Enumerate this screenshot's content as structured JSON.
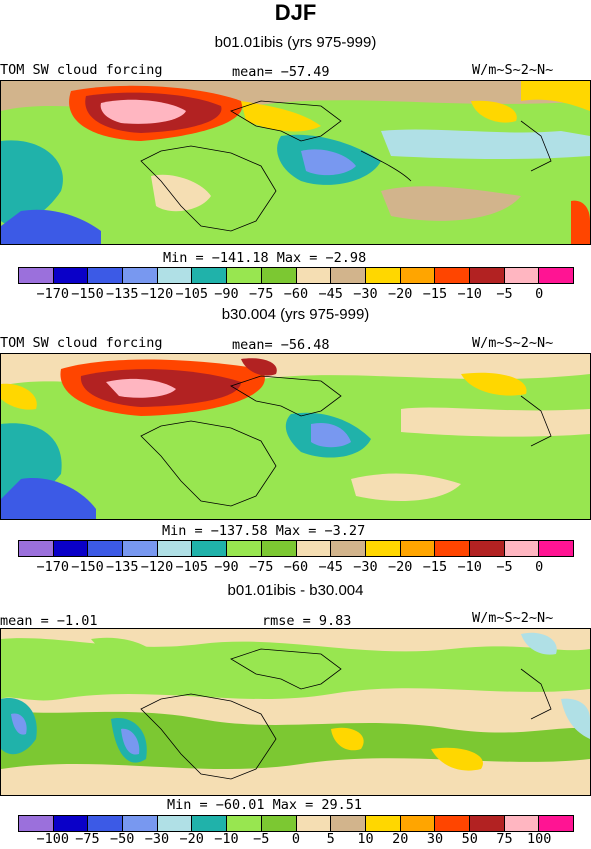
{
  "page_title": "DJF",
  "panels": [
    {
      "title": "b01.01ibis (yrs 975-999)",
      "left_label": "TOM SW cloud forcing",
      "center_label": "mean=  −57.49",
      "units": "W/m~S~2~N~",
      "minmax": "Min = −141.18 Max =   −2.98"
    },
    {
      "title": "b30.004 (yrs 975-999)",
      "left_label": "TOM SW cloud forcing",
      "center_label": "mean=  −56.48",
      "units": "W/m~S~2~N~",
      "minmax": "Min = −137.58 Max =   −3.27"
    },
    {
      "title": "b01.01ibis - b30.004",
      "left_label": "mean =   −1.01",
      "center_label": "rmse =    9.83",
      "units": "W/m~S~2~N~",
      "minmax": "Min = −60.01 Max =   29.51"
    }
  ],
  "colorbar_colors": [
    "#9b70dc",
    "#0a00c8",
    "#3c5ae6",
    "#7898f0",
    "#b0e0e6",
    "#20b2aa",
    "#98e650",
    "#7cc832",
    "#f5deb3",
    "#d2b48c",
    "#ffd700",
    "#ffa500",
    "#ff4500",
    "#b22222",
    "#ffb6c1",
    "#ff1493"
  ],
  "colorbar_ticks_abs": [
    "−170",
    "−150",
    "−135",
    "−120",
    "−105",
    "−90",
    "−75",
    "−60",
    "−45",
    "−30",
    "−20",
    "−15",
    "−10",
    "−5",
    "0"
  ],
  "colorbar_ticks_diff": [
    "−100",
    "−75",
    "−50",
    "−30",
    "−20",
    "−10",
    "−5",
    "0",
    "5",
    "10",
    "20",
    "30",
    "50",
    "75",
    "100"
  ],
  "chart_data": [
    {
      "type": "heatmap",
      "title": "b01.01ibis (yrs 975-999)",
      "variable": "TOM SW cloud forcing",
      "mean": -57.49,
      "min": -141.18,
      "max": -2.98,
      "units": "W/m~S~2~N~",
      "levels": [
        -170,
        -150,
        -135,
        -120,
        -105,
        -90,
        -75,
        -60,
        -45,
        -30,
        -20,
        -15,
        -10,
        -5,
        0
      ]
    },
    {
      "type": "heatmap",
      "title": "b30.004 (yrs 975-999)",
      "variable": "TOM SW cloud forcing",
      "mean": -56.48,
      "min": -137.58,
      "max": -3.27,
      "units": "W/m~S~2~N~",
      "levels": [
        -170,
        -150,
        -135,
        -120,
        -105,
        -90,
        -75,
        -60,
        -45,
        -30,
        -20,
        -15,
        -10,
        -5,
        0
      ]
    },
    {
      "type": "heatmap",
      "title": "b01.01ibis - b30.004",
      "mean": -1.01,
      "rmse": 9.83,
      "min": -60.01,
      "max": 29.51,
      "units": "W/m~S~2~N~",
      "levels": [
        -100,
        -75,
        -50,
        -30,
        -20,
        -10,
        -5,
        0,
        5,
        10,
        20,
        30,
        50,
        75,
        100
      ]
    }
  ]
}
